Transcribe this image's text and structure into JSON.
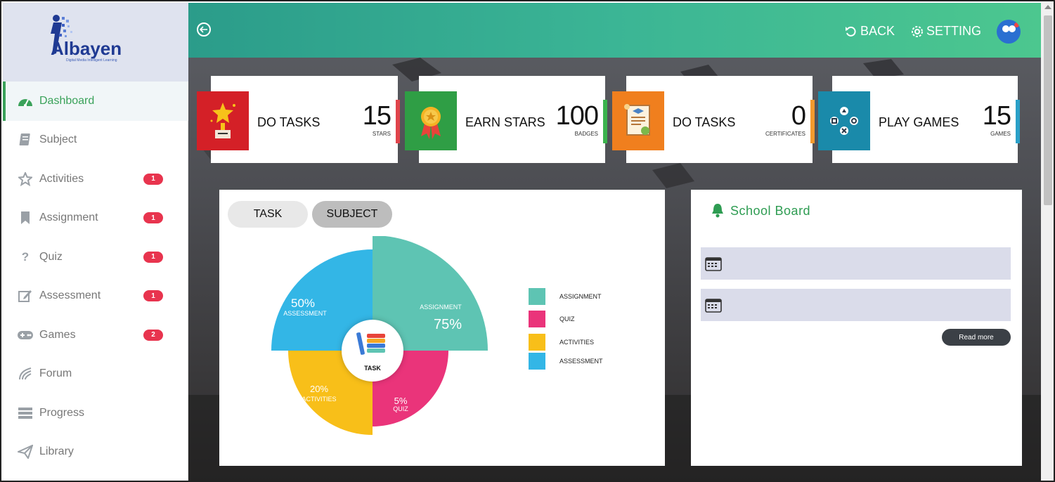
{
  "brand": {
    "logo_text": "Albayen",
    "tagline": "Digital Media Intelligent Learning"
  },
  "sidebar": {
    "items": [
      {
        "label": "Dashboard",
        "icon": "dashboard-icon",
        "active": true,
        "badge": ""
      },
      {
        "label": "Subject",
        "icon": "book-icon",
        "active": false,
        "badge": ""
      },
      {
        "label": "Activities",
        "icon": "star-icon",
        "active": false,
        "badge": "1"
      },
      {
        "label": "Assignment",
        "icon": "bookmark-icon",
        "active": false,
        "badge": "1"
      },
      {
        "label": "Quiz",
        "icon": "question-icon",
        "active": false,
        "badge": "1"
      },
      {
        "label": "Assessment",
        "icon": "edit-icon",
        "active": false,
        "badge": "1"
      },
      {
        "label": "Games",
        "icon": "gamepad-icon",
        "active": false,
        "badge": "2"
      },
      {
        "label": "Forum",
        "icon": "forum-icon",
        "active": false,
        "badge": ""
      },
      {
        "label": "Progress",
        "icon": "progress-icon",
        "active": false,
        "badge": ""
      },
      {
        "label": "Library",
        "icon": "paper-plane-icon",
        "active": false,
        "badge": ""
      }
    ]
  },
  "topbar": {
    "back_label": "BACK",
    "setting_label": "SETTING"
  },
  "cards": [
    {
      "label": "DO TASKS",
      "value": "15",
      "unit": "STARS",
      "color": "#d42027",
      "edge": "#e0444b",
      "icon": "trophy-star-icon"
    },
    {
      "label": "EARN STARS",
      "value": "100",
      "unit": "BADGES",
      "color": "#2f9e45",
      "edge": "#3cb34e",
      "icon": "medal-icon"
    },
    {
      "label": "DO TASKS",
      "value": "0",
      "unit": "CERTIFICATES",
      "color": "#f07f1e",
      "edge": "#f39a2e",
      "icon": "certificate-icon"
    },
    {
      "label": "PLAY GAMES",
      "value": "15",
      "unit": "GAMES",
      "color": "#1a8aaa",
      "edge": "#2aa0c8",
      "icon": "gamepad-buttons-icon"
    }
  ],
  "chart_tabs": {
    "task": "TASK",
    "subject": "SUBJECT"
  },
  "chart_data": {
    "type": "pie",
    "center_label": "TASK",
    "slices": [
      {
        "name": "ASSIGNMENT",
        "value": 75,
        "label": "75%",
        "color": "#5ec4b3"
      },
      {
        "name": "QUIZ",
        "value": 5,
        "label": "5%",
        "color": "#ea347a"
      },
      {
        "name": "ACTIVITIES",
        "value": 20,
        "label": "20%",
        "color": "#f8bf19"
      },
      {
        "name": "ASSESSMENT",
        "value": 50,
        "label": "50%",
        "color": "#33b6e6"
      }
    ],
    "legend": [
      "ASSIGNMENT",
      "QUIZ",
      "ACTIVITIES",
      "ASSESSMENT"
    ]
  },
  "school_board": {
    "title": "School Board",
    "read_more": "Read more"
  }
}
